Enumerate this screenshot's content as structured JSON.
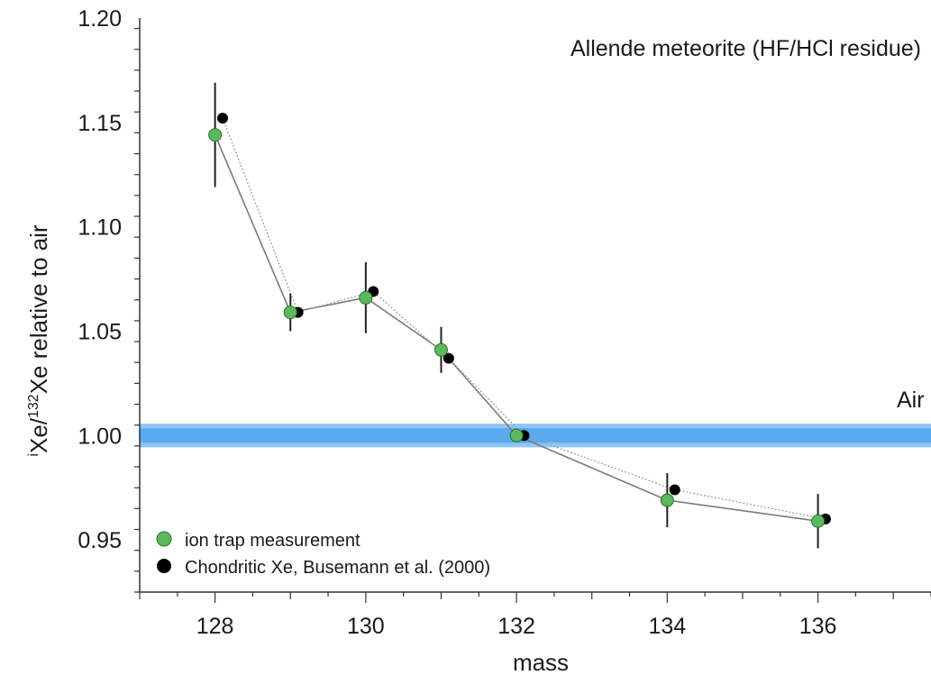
{
  "chart_data": {
    "type": "scatter",
    "title": "Allende meteorite (HF/HCl residue)",
    "xlabel": "mass",
    "ylabel": {
      "prefix": "i",
      "main1": "Xe/",
      "sup": "132",
      "main2": "Xe relative to air"
    },
    "xlim": [
      127,
      137.5
    ],
    "ylim": [
      0.925,
      1.2
    ],
    "xticks": [
      128,
      130,
      132,
      134,
      136
    ],
    "yticks": [
      0.95,
      1.0,
      1.05,
      1.1,
      1.15,
      1.2
    ],
    "ytick_labels": [
      "0.95",
      "1.00",
      "1.05",
      "1.10",
      "1.15",
      "1.20"
    ],
    "grid": false,
    "legend_position": "bottom-left",
    "reference_band": {
      "label": "Air",
      "center": 1.0,
      "band": [
        0.9965,
        1.0035
      ],
      "color": "#5aaaf0"
    },
    "series": [
      {
        "name": "ion trap measurement",
        "color": "#5cb85c",
        "line_color": "#7a7a7a",
        "line_style": "solid",
        "x": [
          128,
          129,
          130,
          131,
          132,
          134,
          136
        ],
        "y": [
          1.144,
          1.059,
          1.066,
          1.041,
          1.0,
          0.969,
          0.959
        ],
        "yerr": [
          0.025,
          0.009,
          0.017,
          0.011,
          0.0,
          0.013,
          0.013
        ]
      },
      {
        "name": "Chondritic Xe, Busemann et al. (2000)",
        "color": "#000000",
        "line_color": "#9a9a9a",
        "line_style": "dotted",
        "x": [
          128.1,
          129.1,
          130.1,
          131.1,
          132.1,
          134.1,
          136.1
        ],
        "y": [
          1.152,
          1.059,
          1.069,
          1.037,
          1.0,
          0.974,
          0.96
        ]
      }
    ]
  }
}
